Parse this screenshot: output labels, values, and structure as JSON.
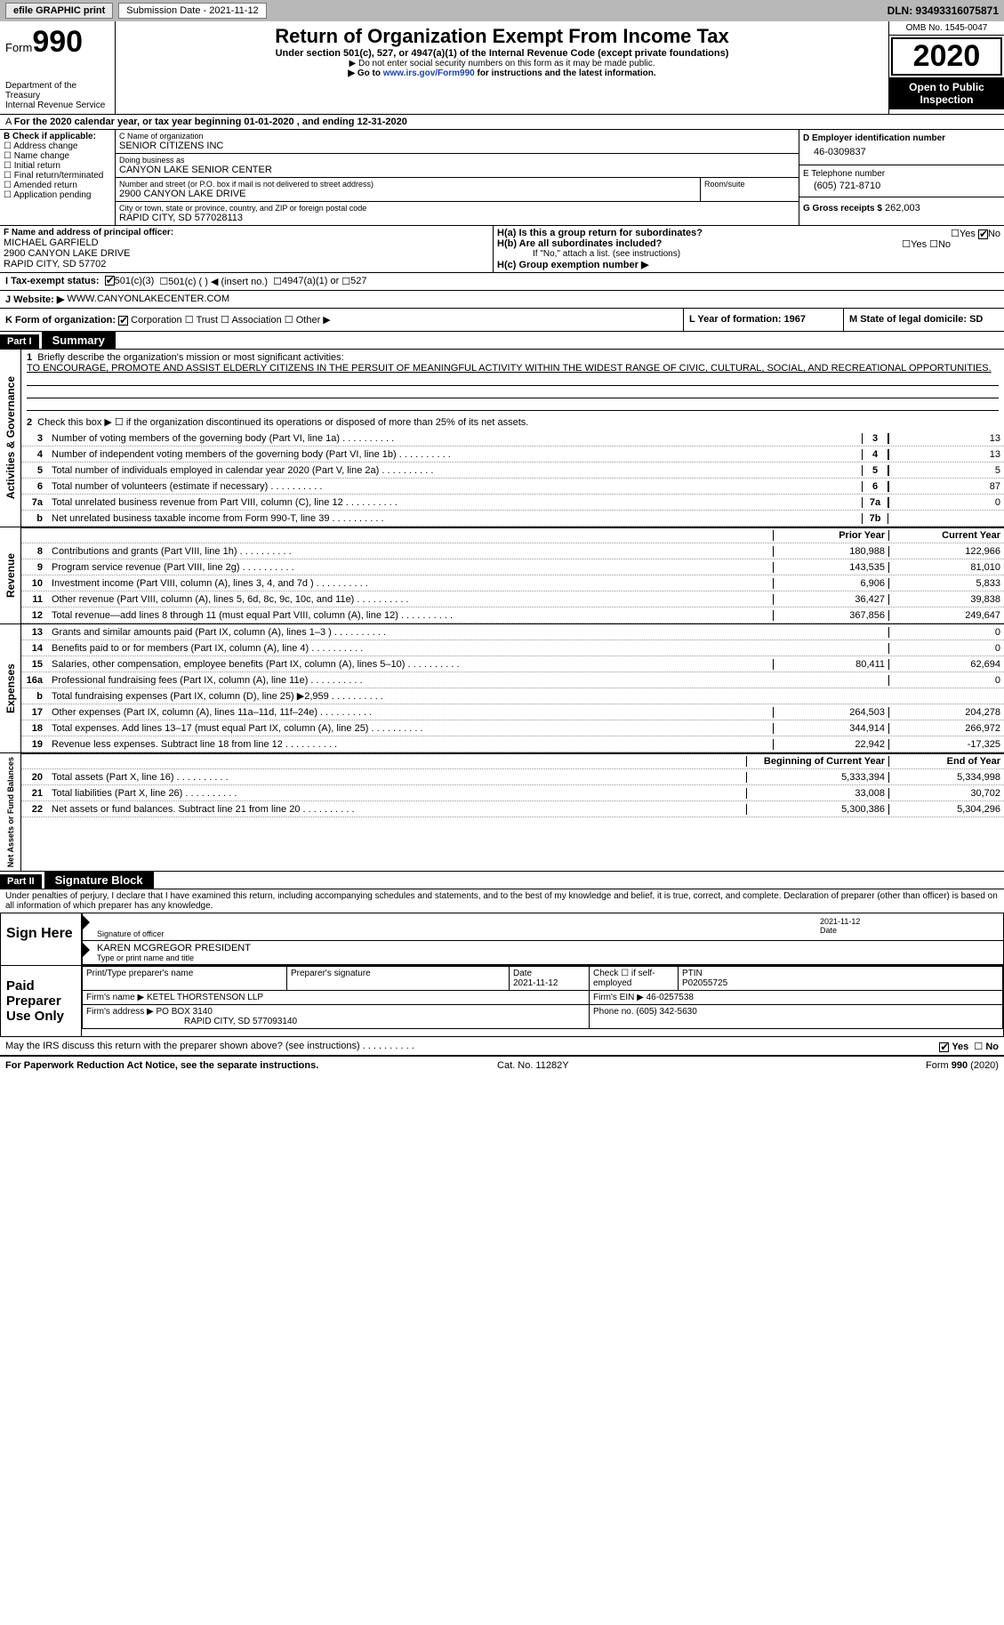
{
  "topbar": {
    "efile": "efile GRAPHIC print",
    "submission_label": "Submission Date - 2021-11-12",
    "dln": "DLN: 93493316075871"
  },
  "header": {
    "form_prefix": "Form",
    "form_num": "990",
    "dept": "Department of the Treasury",
    "irs": "Internal Revenue Service",
    "title": "Return of Organization Exempt From Income Tax",
    "sub": "Under section 501(c), 527, or 4947(a)(1) of the Internal Revenue Code (except private foundations)",
    "nossn": "▶ Do not enter social security numbers on this form as it may be made public.",
    "goto_pre": "▶ Go to ",
    "goto_link": "www.irs.gov/Form990",
    "goto_post": " for instructions and the latest information.",
    "omb": "OMB No. 1545-0047",
    "year": "2020",
    "open": "Open to Public Inspection"
  },
  "period": "For the 2020 calendar year, or tax year beginning 01-01-2020   , and ending 12-31-2020",
  "boxB": {
    "label": "B Check if applicable:",
    "opts": [
      "Address change",
      "Name change",
      "Initial return",
      "Final return/terminated",
      "Amended return",
      "Application pending"
    ]
  },
  "boxC": {
    "name_label": "C Name of organization",
    "name": "SENIOR CITIZENS INC",
    "dba_label": "Doing business as",
    "dba": "CANYON LAKE SENIOR CENTER",
    "street_label": "Number and street (or P.O. box if mail is not delivered to street address)",
    "room_label": "Room/suite",
    "street": "2900 CANYON LAKE DRIVE",
    "city_label": "City or town, state or province, country, and ZIP or foreign postal code",
    "city": "RAPID CITY, SD  577028113"
  },
  "boxD": {
    "label": "D Employer identification number",
    "value": "46-0309837"
  },
  "boxE": {
    "label": "E Telephone number",
    "value": "(605) 721-8710"
  },
  "boxG": {
    "label": "G Gross receipts $",
    "value": "262,003"
  },
  "boxF": {
    "label": "F Name and address of principal officer:",
    "name": "MICHAEL GARFIELD",
    "street": "2900 CANYON LAKE DRIVE",
    "city": "RAPID CITY, SD  57702"
  },
  "boxH": {
    "ha": "H(a)  Is this a group return for subordinates?",
    "hb": "H(b)  Are all subordinates included?",
    "hnote": "If \"No,\" attach a list. (see instructions)",
    "hc": "H(c)  Group exemption number ▶"
  },
  "boxI": {
    "label": "I     Tax-exempt status:",
    "o1": "501(c)(3)",
    "o2": "501(c) (  ) ◀ (insert no.)",
    "o3": "4947(a)(1) or",
    "o4": "527"
  },
  "boxJ": {
    "label": "J    Website: ▶",
    "value": "WWW.CANYONLAKECENTER.COM"
  },
  "boxK": {
    "label": "K Form of organization:",
    "o1": "Corporation",
    "o2": "Trust",
    "o3": "Association",
    "o4": "Other ▶"
  },
  "boxL": {
    "label": "L Year of formation: 1967"
  },
  "boxM": {
    "label": "M State of legal domicile: SD"
  },
  "part1": {
    "label": "Part I",
    "title": "Summary",
    "l1_label": "Briefly describe the organization's mission or most significant activities:",
    "l1_text": "TO ENCOURAGE, PROMOTE AND ASSIST ELDERLY CITIZENS IN THE PERSUIT OF MEANINGFUL ACTIVITY WITHIN THE WIDEST RANGE OF CIVIC, CULTURAL, SOCIAL, AND RECREATIONAL OPPORTUNITIES.",
    "l2": "Check this box ▶ ☐  if the organization discontinued its operations or disposed of more than 25% of its net assets.",
    "gov_lines": [
      {
        "n": "3",
        "t": "Number of voting members of the governing body (Part VI, line 1a)",
        "b": "3",
        "v": "13"
      },
      {
        "n": "4",
        "t": "Number of independent voting members of the governing body (Part VI, line 1b)",
        "b": "4",
        "v": "13"
      },
      {
        "n": "5",
        "t": "Total number of individuals employed in calendar year 2020 (Part V, line 2a)",
        "b": "5",
        "v": "5"
      },
      {
        "n": "6",
        "t": "Total number of volunteers (estimate if necessary)",
        "b": "6",
        "v": "87"
      },
      {
        "n": "7a",
        "t": "Total unrelated business revenue from Part VIII, column (C), line 12",
        "b": "7a",
        "v": "0"
      },
      {
        "n": "b",
        "t": "Net unrelated business taxable income from Form 990-T, line 39",
        "b": "7b",
        "v": ""
      }
    ],
    "col_prior": "Prior Year",
    "col_curr": "Current Year",
    "rev_lines": [
      {
        "n": "8",
        "t": "Contributions and grants (Part VIII, line 1h)",
        "p": "180,988",
        "c": "122,966"
      },
      {
        "n": "9",
        "t": "Program service revenue (Part VIII, line 2g)",
        "p": "143,535",
        "c": "81,010"
      },
      {
        "n": "10",
        "t": "Investment income (Part VIII, column (A), lines 3, 4, and 7d )",
        "p": "6,906",
        "c": "5,833"
      },
      {
        "n": "11",
        "t": "Other revenue (Part VIII, column (A), lines 5, 6d, 8c, 9c, 10c, and 11e)",
        "p": "36,427",
        "c": "39,838"
      },
      {
        "n": "12",
        "t": "Total revenue—add lines 8 through 11 (must equal Part VIII, column (A), line 12)",
        "p": "367,856",
        "c": "249,647"
      }
    ],
    "exp_lines": [
      {
        "n": "13",
        "t": "Grants and similar amounts paid (Part IX, column (A), lines 1–3 )",
        "p": "",
        "c": "0"
      },
      {
        "n": "14",
        "t": "Benefits paid to or for members (Part IX, column (A), line 4)",
        "p": "",
        "c": "0"
      },
      {
        "n": "15",
        "t": "Salaries, other compensation, employee benefits (Part IX, column (A), lines 5–10)",
        "p": "80,411",
        "c": "62,694"
      },
      {
        "n": "16a",
        "t": "Professional fundraising fees (Part IX, column (A), line 11e)",
        "p": "",
        "c": "0"
      },
      {
        "n": "b",
        "t": "Total fundraising expenses (Part IX, column (D), line 25) ▶2,959",
        "p": "shade",
        "c": "shade"
      },
      {
        "n": "17",
        "t": "Other expenses (Part IX, column (A), lines 11a–11d, 11f–24e)",
        "p": "264,503",
        "c": "204,278"
      },
      {
        "n": "18",
        "t": "Total expenses. Add lines 13–17 (must equal Part IX, column (A), line 25)",
        "p": "344,914",
        "c": "266,972"
      },
      {
        "n": "19",
        "t": "Revenue less expenses. Subtract line 18 from line 12",
        "p": "22,942",
        "c": "-17,325"
      }
    ],
    "col_begin": "Beginning of Current Year",
    "col_end": "End of Year",
    "net_lines": [
      {
        "n": "20",
        "t": "Total assets (Part X, line 16)",
        "p": "5,333,394",
        "c": "5,334,998"
      },
      {
        "n": "21",
        "t": "Total liabilities (Part X, line 26)",
        "p": "33,008",
        "c": "30,702"
      },
      {
        "n": "22",
        "t": "Net assets or fund balances. Subtract line 21 from line 20",
        "p": "5,300,386",
        "c": "5,304,296"
      }
    ],
    "side_gov": "Activities & Governance",
    "side_rev": "Revenue",
    "side_exp": "Expenses",
    "side_net": "Net Assets or Fund Balances"
  },
  "part2": {
    "label": "Part II",
    "title": "Signature Block",
    "decl": "Under penalties of perjury, I declare that I have examined this return, including accompanying schedules and statements, and to the best of my knowledge and belief, it is true, correct, and complete. Declaration of preparer (other than officer) is based on all information of which preparer has any knowledge.",
    "sign_here": "Sign Here",
    "sig_officer": "Signature of officer",
    "sig_date": "Date",
    "sig_date_v": "2021-11-12",
    "officer_name": "KAREN MCGREGOR PRESIDENT",
    "officer_type": "Type or print name and title",
    "paid": "Paid Preparer Use Only",
    "p_name_l": "Print/Type preparer's name",
    "p_sig_l": "Preparer's signature",
    "p_date_l": "Date",
    "p_date_v": "2021-11-12",
    "p_check": "Check ☐ if self-employed",
    "p_ptin_l": "PTIN",
    "p_ptin_v": "P02055725",
    "firm_l": "Firm's name   ▶",
    "firm_v": "KETEL THORSTENSON LLP",
    "firm_ein_l": "Firm's EIN ▶",
    "firm_ein_v": "46-0257538",
    "addr_l": "Firm's address ▶",
    "addr_v1": "PO BOX 3140",
    "addr_v2": "RAPID CITY, SD  577093140",
    "phone_l": "Phone no.",
    "phone_v": "(605) 342-5630",
    "may": "May the IRS discuss this return with the preparer shown above? (see instructions)"
  },
  "footer": {
    "pra": "For Paperwork Reduction Act Notice, see the separate instructions.",
    "cat": "Cat. No. 11282Y",
    "form": "Form 990 (2020)"
  }
}
